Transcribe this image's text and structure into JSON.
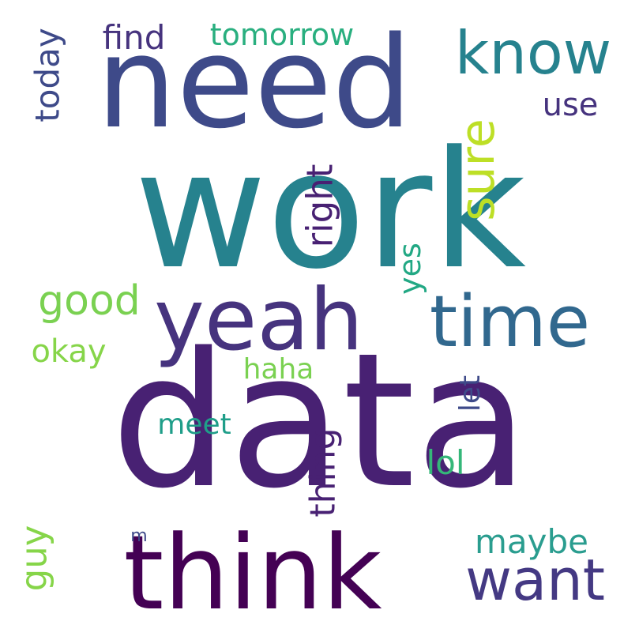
{
  "words": [
    {
      "text": "work",
      "color": "#26828e",
      "vertical": false
    },
    {
      "text": "data",
      "color": "#482173",
      "vertical": false
    },
    {
      "text": "need",
      "color": "#3e4a89",
      "vertical": false
    },
    {
      "text": "think",
      "color": "#440154",
      "vertical": false
    },
    {
      "text": "yeah",
      "color": "#46337e",
      "vertical": false
    },
    {
      "text": "time",
      "color": "#31688e",
      "vertical": false
    },
    {
      "text": "know",
      "color": "#26828e",
      "vertical": false
    },
    {
      "text": "want",
      "color": "#443983",
      "vertical": false
    },
    {
      "text": "sure",
      "color": "#bddf26",
      "vertical": true
    },
    {
      "text": "tomorrow",
      "color": "#29af7f",
      "vertical": false
    },
    {
      "text": "find",
      "color": "#46337e",
      "vertical": false
    },
    {
      "text": "today",
      "color": "#3e4a89",
      "vertical": true
    },
    {
      "text": "use",
      "color": "#46337e",
      "vertical": false
    },
    {
      "text": "right",
      "color": "#482173",
      "vertical": true
    },
    {
      "text": "good",
      "color": "#7ad151",
      "vertical": false
    },
    {
      "text": "yes",
      "color": "#22a884",
      "vertical": true
    },
    {
      "text": "okay",
      "color": "#86d549",
      "vertical": false
    },
    {
      "text": "haha",
      "color": "#7ad151",
      "vertical": false
    },
    {
      "text": "let",
      "color": "#3e4a89",
      "vertical": true
    },
    {
      "text": "meet",
      "color": "#1f9e89",
      "vertical": false
    },
    {
      "text": "thing",
      "color": "#482173",
      "vertical": true
    },
    {
      "text": "lol",
      "color": "#35b779",
      "vertical": false
    },
    {
      "text": "guy",
      "color": "#86d549",
      "vertical": true
    },
    {
      "text": "m",
      "color": "#3e4a89",
      "vertical": false
    },
    {
      "text": "maybe",
      "color": "#2a9d8f",
      "vertical": false
    }
  ]
}
